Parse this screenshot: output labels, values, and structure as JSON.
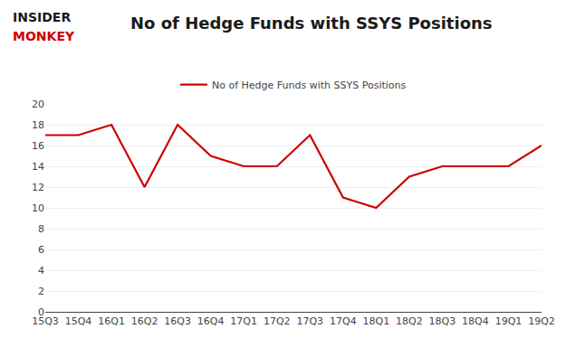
{
  "chart_data": {
    "type": "line",
    "title": "No of Hedge Funds with SSYS Positions",
    "categories": [
      "15Q3",
      "15Q4",
      "16Q1",
      "16Q2",
      "16Q3",
      "16Q4",
      "17Q1",
      "17Q2",
      "17Q3",
      "17Q4",
      "18Q1",
      "18Q2",
      "18Q3",
      "18Q4",
      "19Q1",
      "19Q2"
    ],
    "series": [
      {
        "name": "No of Hedge Funds with SSYS Positions",
        "color": "#cc0000",
        "values": [
          17,
          17,
          18,
          12,
          18,
          15,
          14,
          14,
          17,
          11,
          10,
          13,
          14,
          14,
          14,
          16
        ]
      }
    ],
    "ylim": [
      0,
      20
    ],
    "yticks": [
      0,
      2,
      4,
      6,
      8,
      10,
      12,
      14,
      16,
      18,
      20
    ],
    "grid": true,
    "legend": "top",
    "annotations": [
      {
        "text": "INSIDER",
        "color": "#1a1a1a"
      },
      {
        "text": "MONKEY",
        "color": "#cc0000"
      }
    ]
  }
}
